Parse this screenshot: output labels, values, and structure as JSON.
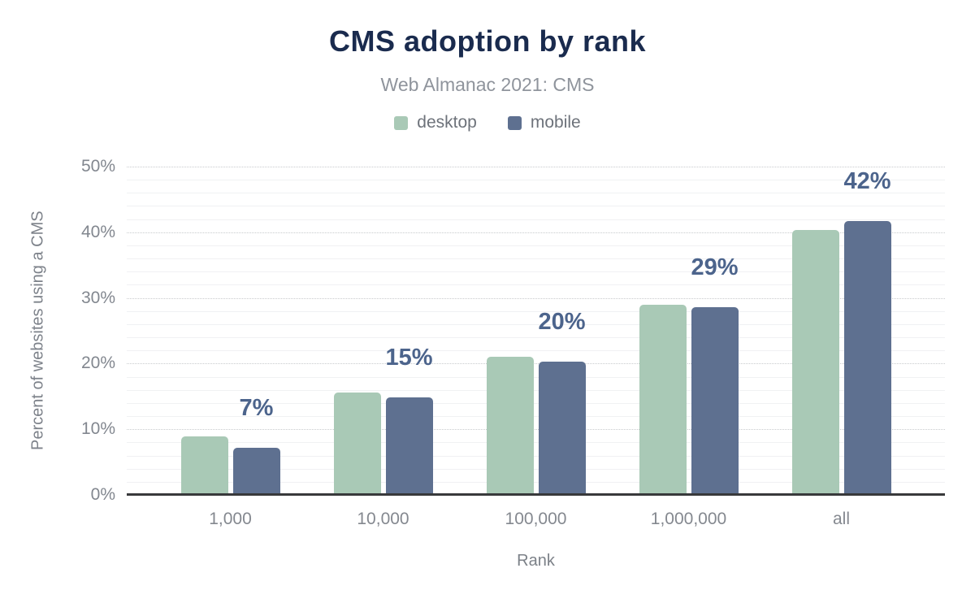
{
  "chart_data": {
    "type": "bar",
    "title": "CMS adoption by rank",
    "subtitle": "Web Almanac 2021: CMS",
    "categories": [
      "1,000",
      "10,000",
      "100,000",
      "1,000,000",
      "all"
    ],
    "series": [
      {
        "name": "desktop",
        "color": "#a9c9b6",
        "values": [
          8.9,
          15.6,
          21.1,
          29.0,
          40.4
        ]
      },
      {
        "name": "mobile",
        "color": "#5e7090",
        "values": [
          7.2,
          14.9,
          20.3,
          28.6,
          41.7
        ]
      }
    ],
    "annotations": [
      "7%",
      "15%",
      "20%",
      "29%",
      "42%"
    ],
    "annotation_series": "mobile",
    "xlabel": "Rank",
    "ylabel": "Percent of websites using a CMS",
    "ylim": [
      0,
      50
    ],
    "y_major_step": 10,
    "y_minor_step": 2,
    "y_tick_suffix": "%",
    "grid": true,
    "legend_position": "top"
  },
  "colors": {
    "title": "#1a2b4e",
    "subtitle": "#8f949c",
    "annotation": "#4c648c",
    "axis_line": "#38393b",
    "axis_text": "#82878f"
  }
}
